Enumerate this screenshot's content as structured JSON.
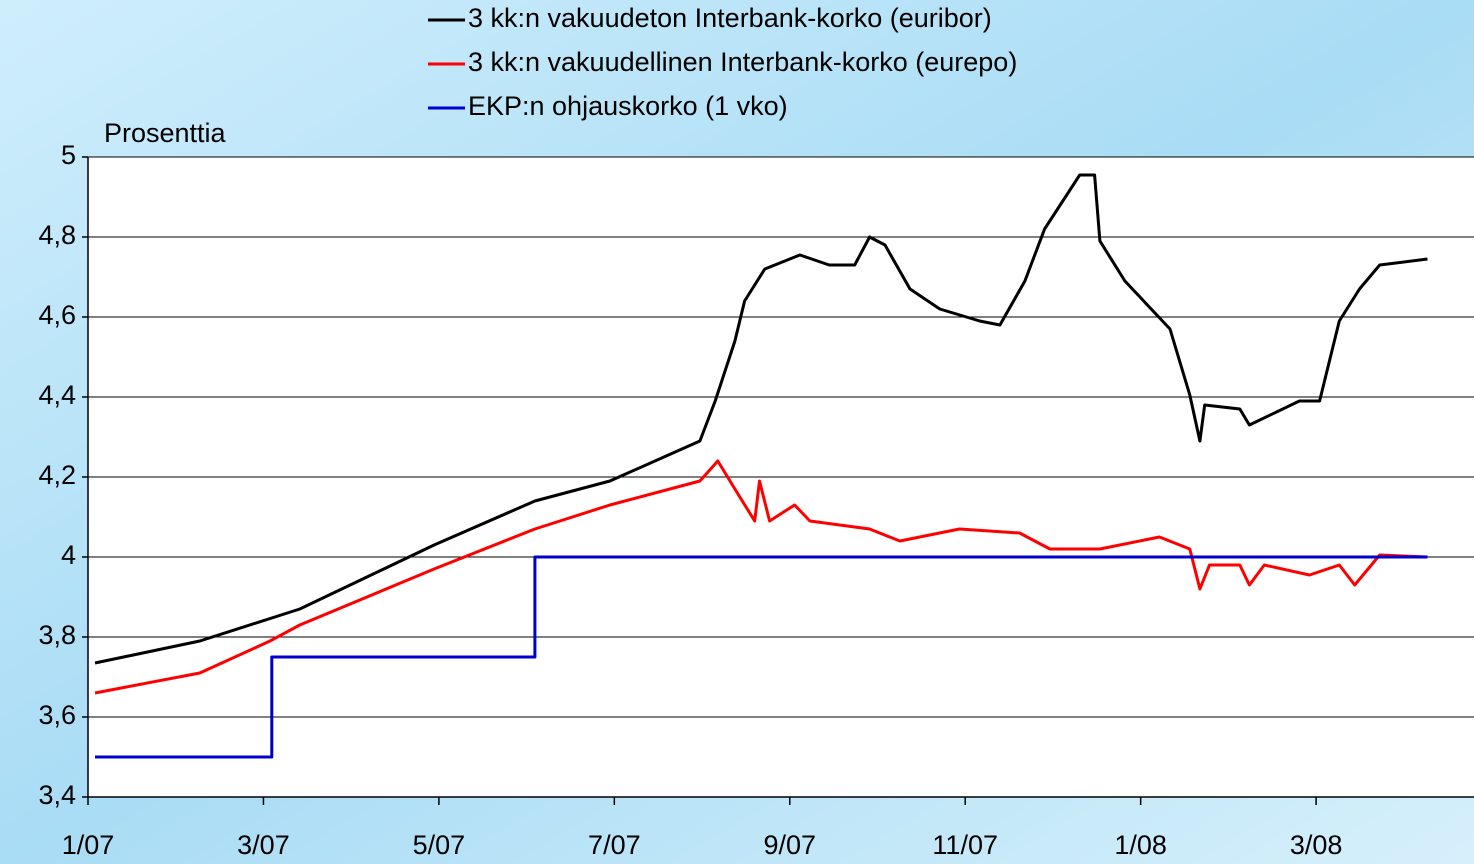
{
  "chart_data": {
    "type": "line",
    "y_label": "Prosenttia",
    "xlim": [
      0,
      31.6
    ],
    "xticks": [
      {
        "value": 0,
        "label": "1/07"
      },
      {
        "value": 4,
        "label": "3/07"
      },
      {
        "value": 8,
        "label": "5/07"
      },
      {
        "value": 12,
        "label": "7/07"
      },
      {
        "value": 16,
        "label": "9/07"
      },
      {
        "value": 20,
        "label": "11/07"
      },
      {
        "value": 24,
        "label": "1/08"
      },
      {
        "value": 28,
        "label": "3/08"
      }
    ],
    "ylim": [
      3.4,
      5
    ],
    "yticks": [
      {
        "value": 3.4,
        "label": "3,4"
      },
      {
        "value": 3.6,
        "label": "3,6"
      },
      {
        "value": 3.8,
        "label": "3,8"
      },
      4,
      {
        "value": 4.2,
        "label": "4,2"
      },
      {
        "value": 4.4,
        "label": "4,4"
      },
      {
        "value": 4.6,
        "label": "4,6"
      },
      {
        "value": 4.8,
        "label": "4,8"
      },
      5
    ],
    "grid": true,
    "series": [
      {
        "name": "3 kk:n vakuudeton Interbank-korko (euribor)",
        "color": "#000000",
        "x": [
          0.16,
          2.55,
          4.83,
          7.89,
          10.19,
          11.9,
          13.95,
          14.3,
          14.75,
          14.97,
          15.43,
          16.23,
          16.9,
          17.48,
          17.82,
          18.17,
          18.74,
          19.42,
          20.33,
          20.79,
          21.36,
          21.81,
          22.61,
          22.95,
          23.07,
          23.64,
          24.67,
          25.12,
          25.35,
          25.46,
          26.26,
          26.48,
          27.62,
          28.08,
          28.53,
          28.99,
          29.45,
          30.54
        ],
        "values": [
          3.735,
          3.79,
          3.87,
          4.03,
          4.14,
          4.19,
          4.29,
          4.39,
          4.54,
          4.64,
          4.72,
          4.755,
          4.73,
          4.73,
          4.8,
          4.78,
          4.67,
          4.62,
          4.59,
          4.58,
          4.69,
          4.82,
          4.955,
          4.955,
          4.79,
          4.69,
          4.57,
          4.405,
          4.29,
          4.38,
          4.37,
          4.33,
          4.39,
          4.39,
          4.59,
          4.67,
          4.73,
          4.745
        ]
      },
      {
        "name": "3 kk:n vakuudellinen Interbank-korko (eurepo)",
        "color": "#ff0000",
        "x": [
          0.16,
          2.55,
          4.15,
          4.83,
          7.89,
          10.19,
          11.9,
          13.95,
          14.36,
          14.75,
          15.2,
          15.31,
          15.54,
          16.11,
          16.46,
          17.82,
          18.51,
          19.87,
          21.24,
          21.93,
          23.07,
          24.43,
          25.12,
          25.35,
          25.57,
          26.26,
          26.48,
          26.82,
          27.85,
          28.53,
          28.88,
          29.45,
          30.54
        ],
        "values": [
          3.66,
          3.71,
          3.79,
          3.83,
          3.97,
          4.07,
          4.13,
          4.19,
          4.24,
          4.17,
          4.09,
          4.19,
          4.09,
          4.13,
          4.09,
          4.07,
          4.04,
          4.07,
          4.06,
          4.02,
          4.02,
          4.05,
          4.02,
          3.92,
          3.98,
          3.98,
          3.93,
          3.98,
          3.955,
          3.98,
          3.93,
          4.005,
          4.0
        ]
      },
      {
        "name": "EKP:n ohjauskorko (1 vko)",
        "color": "#0000cc",
        "x": [
          0.16,
          4.19,
          4.19,
          10.19,
          10.19,
          30.54
        ],
        "values": [
          3.5,
          3.5,
          3.75,
          3.75,
          4,
          4
        ]
      }
    ]
  }
}
